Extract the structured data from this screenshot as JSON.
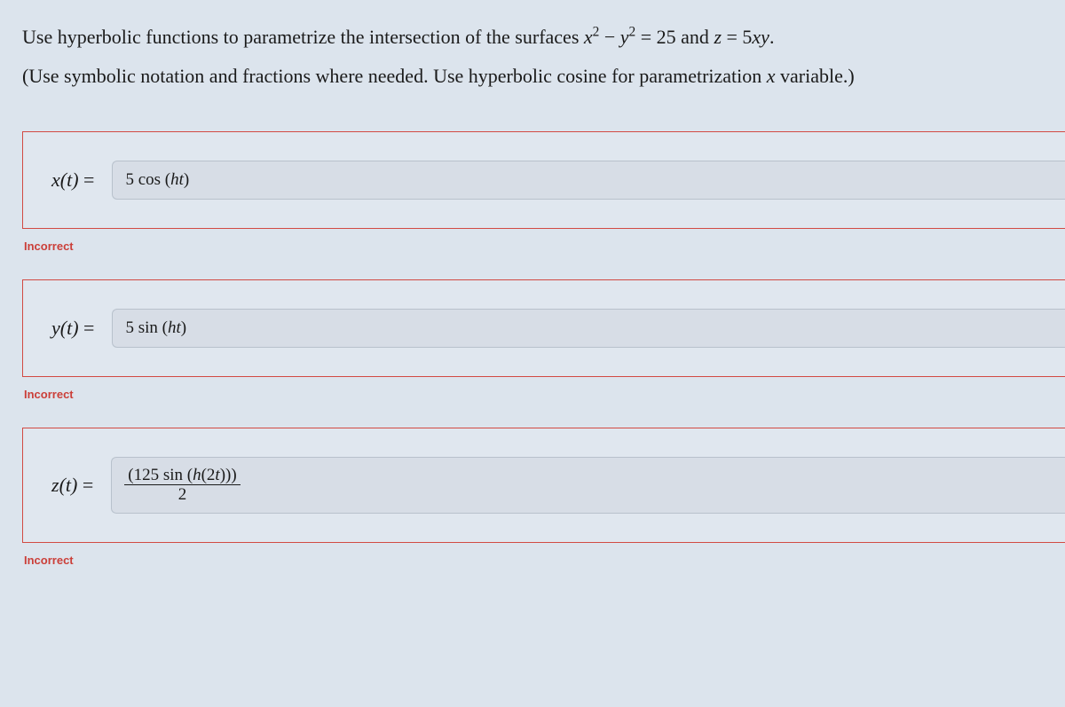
{
  "problem": {
    "line1_pre": "Use hyperbolic functions to parametrize the intersection of the surfaces ",
    "eq1_html": "<span class='math-var'>x</span><sup>2</sup> − <span class='math-var'>y</span><sup>2</sup> = 25",
    "line1_mid": " and ",
    "eq2_html": "<span class='math-var'>z</span> = 5<span class='math-var'>xy</span>.",
    "line2": "(Use symbolic notation and fractions where needed. Use hyperbolic cosine for parametrization ",
    "line2_var": "x",
    "line2_post": " variable.)"
  },
  "answers": {
    "x": {
      "label_var": "x",
      "label_arg": "t",
      "value_html": "5 cos (<span class='mi'>ht</span>)",
      "feedback": "Incorrect"
    },
    "y": {
      "label_var": "y",
      "label_arg": "t",
      "value_html": "5 sin (<span class='mi'>ht</span>)",
      "feedback": "Incorrect"
    },
    "z": {
      "label_var": "z",
      "label_arg": "t",
      "numerator_html": "(125 sin (<span class='mi'>h</span>(2<span class='mi'>t</span>)))",
      "denominator": "2",
      "feedback": "Incorrect"
    }
  },
  "colors": {
    "page_bg": "#dce4ed",
    "block_bg": "#e0e7ef",
    "block_border": "#d24a43",
    "field_bg": "#d7dde6",
    "field_border": "#b8c1cc",
    "feedback_text": "#cb3f39",
    "text": "#1a1a1a"
  }
}
